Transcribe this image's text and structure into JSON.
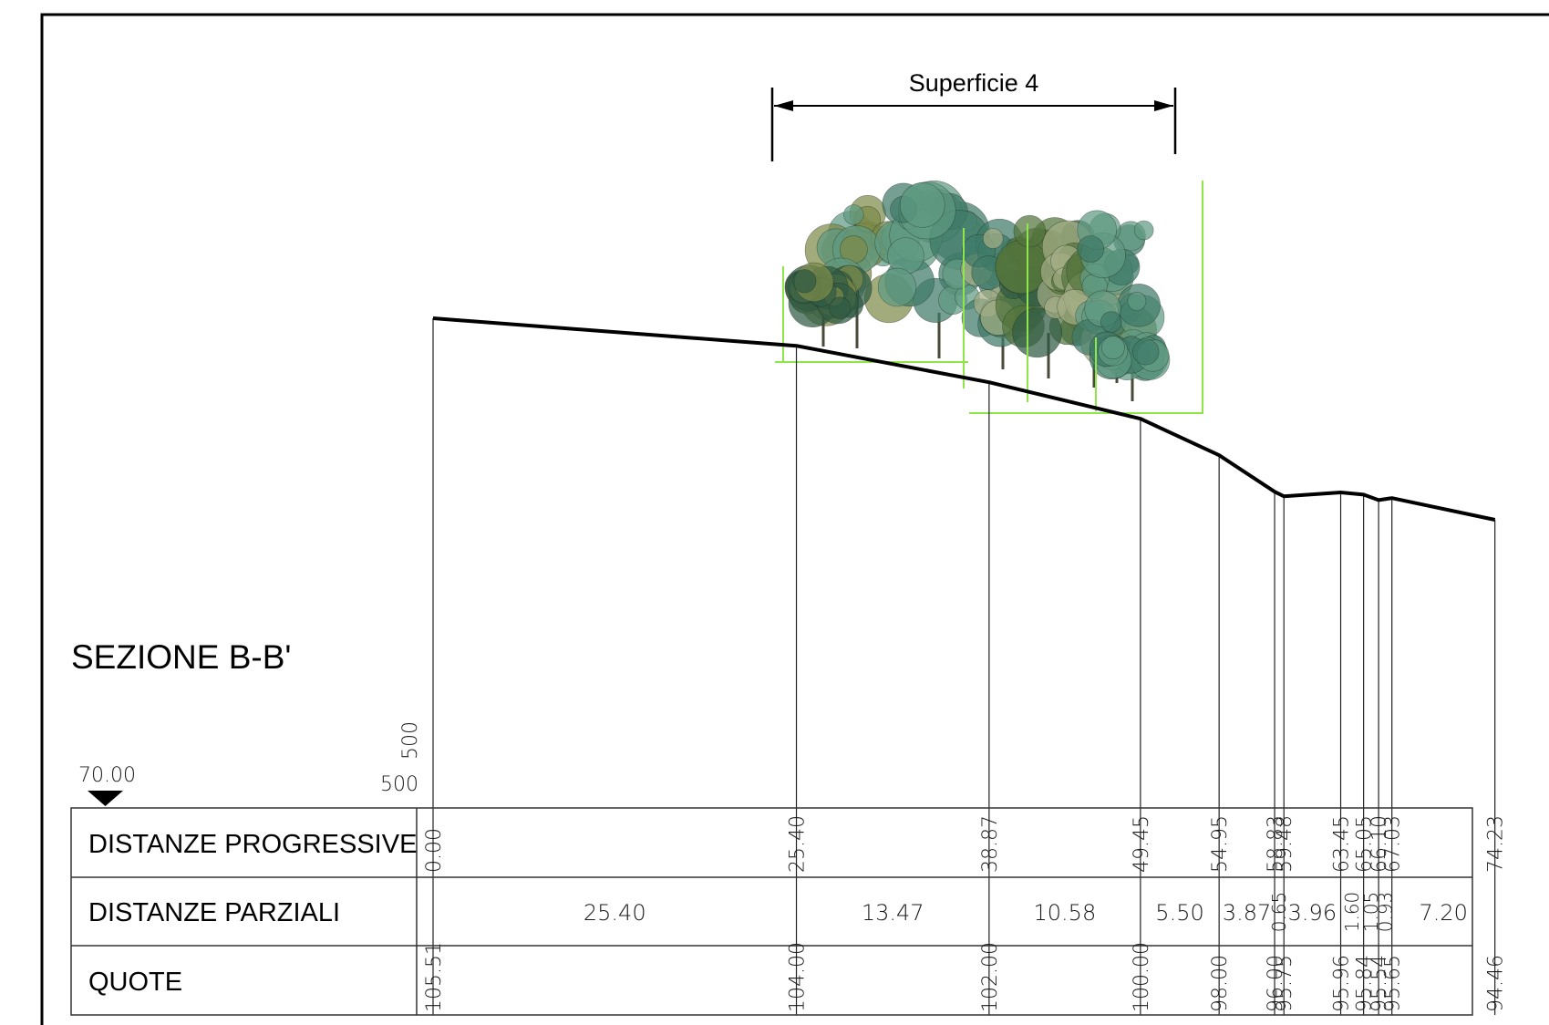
{
  "title": "SEZIONE B-B'",
  "datum": "70.00",
  "scale": {
    "horizontal": "500",
    "vertical": "500"
  },
  "span_label": "Superficie 4",
  "rows": {
    "progressive_label": "DISTANZE PROGRESSIVE",
    "partial_label": "DISTANZE PARZIALI",
    "heights_label": "QUOTE"
  },
  "stations": [
    {
      "progressive": "0.00",
      "elevation": "105.51",
      "d": 0.0,
      "z": 105.51
    },
    {
      "progressive": "25.40",
      "elevation": "104.00",
      "d": 25.4,
      "z": 104.0
    },
    {
      "progressive": "38.87",
      "elevation": "102.00",
      "d": 38.87,
      "z": 102.0
    },
    {
      "progressive": "49.45",
      "elevation": "100.00",
      "d": 49.45,
      "z": 100.0
    },
    {
      "progressive": "54.95",
      "elevation": "98.00",
      "d": 54.95,
      "z": 98.0
    },
    {
      "progressive": "58.83",
      "elevation": "96.00",
      "d": 58.83,
      "z": 96.0
    },
    {
      "progressive": "59.48",
      "elevation": "95.75",
      "d": 59.48,
      "z": 95.75
    },
    {
      "progressive": "63.45",
      "elevation": "95.96",
      "d": 63.45,
      "z": 95.96
    },
    {
      "progressive": "65.05",
      "elevation": "95.84",
      "d": 65.05,
      "z": 95.84
    },
    {
      "progressive": "66.10",
      "elevation": "95.54",
      "d": 66.1,
      "z": 95.54
    },
    {
      "progressive": "67.03",
      "elevation": "95.65",
      "d": 67.03,
      "z": 95.65
    },
    {
      "progressive": "74.23",
      "elevation": "94.46",
      "d": 74.23,
      "z": 94.46
    }
  ],
  "partials": [
    "25.40",
    "13.47",
    "10.58",
    "5.50",
    "3.87",
    "0.65",
    "3.96",
    "1.60",
    "1.05",
    "0.93",
    "7.20"
  ],
  "colors": {
    "ink": "#000000",
    "survey_lines": "#8ee64a",
    "foliage": [
      "#7d8a4a",
      "#5f9a82",
      "#3f7a68",
      "#a4ad85",
      "#53753c",
      "#2f5a44"
    ]
  }
}
